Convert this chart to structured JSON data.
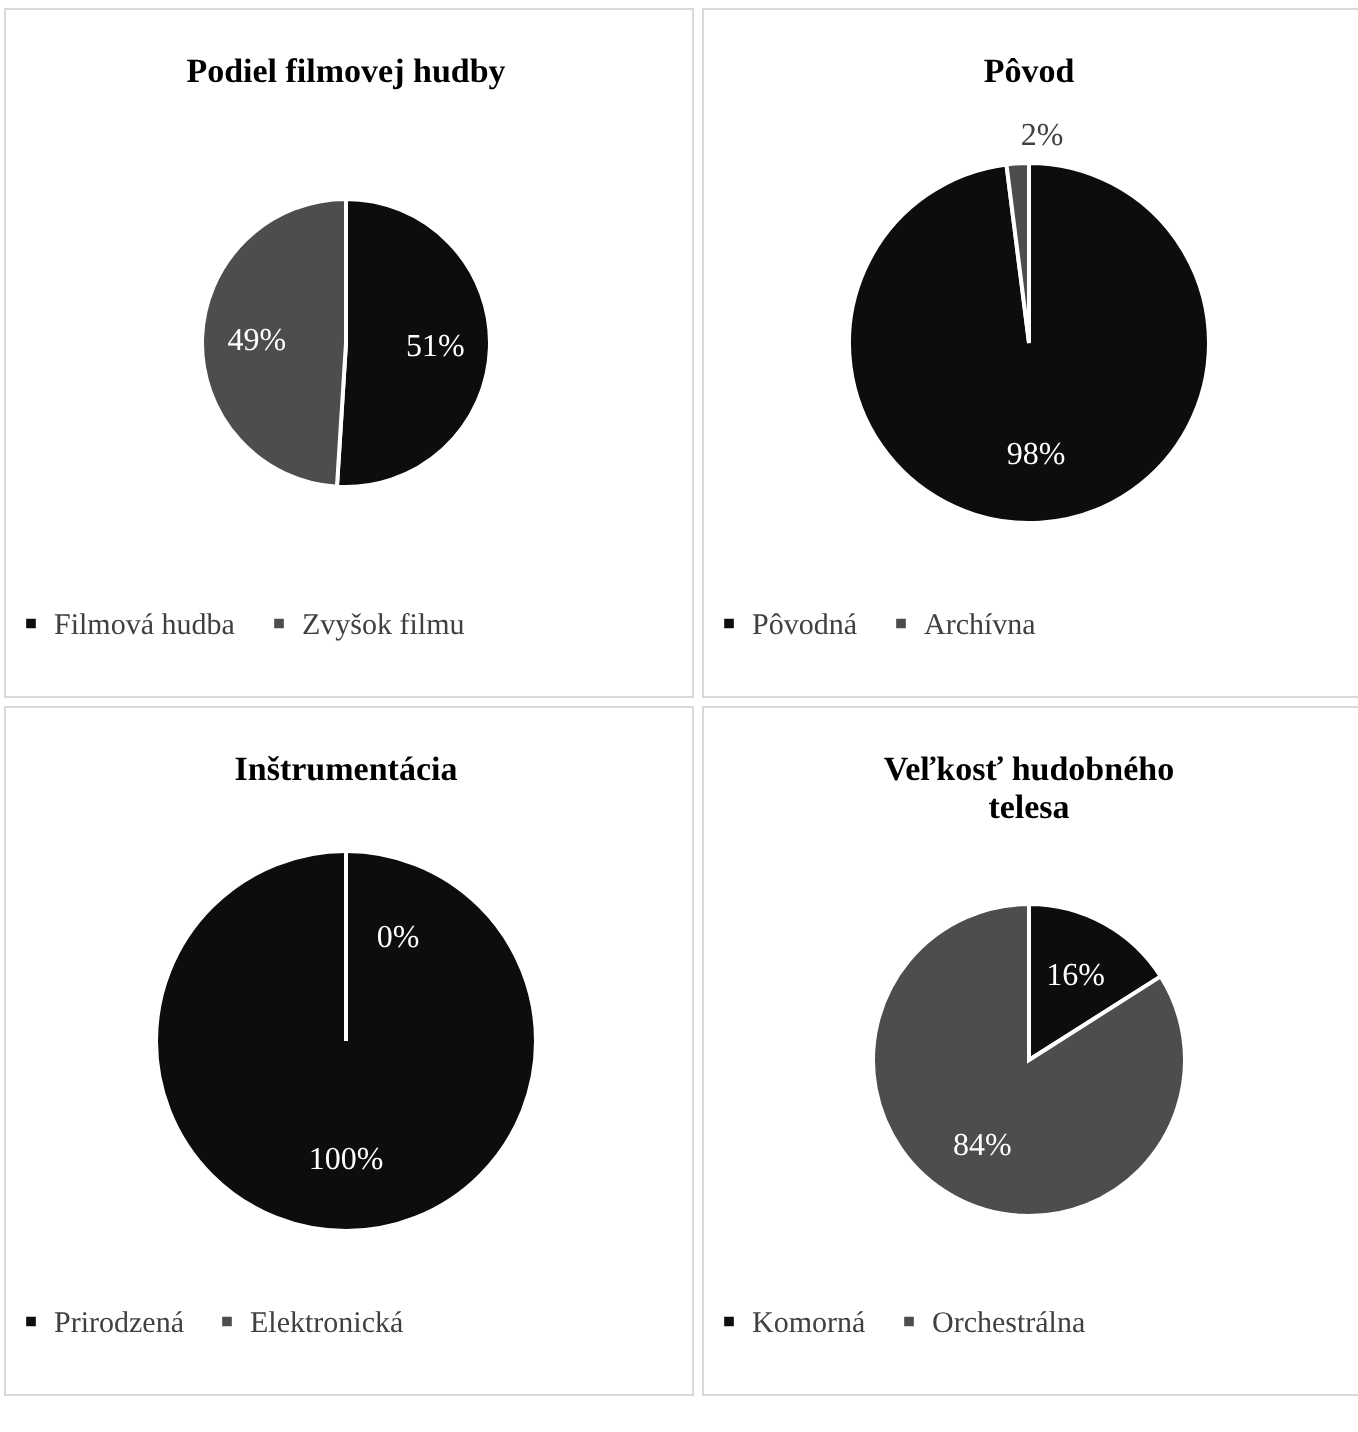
{
  "chart_data": [
    {
      "type": "pie",
      "title": "Podiel filmovej hudby",
      "categories": [
        "Filmová hudba",
        "Zvyšok filmu"
      ],
      "values": [
        51,
        49
      ],
      "colors": [
        "#0d0d0d",
        "#4d4d4d"
      ],
      "value_labels": [
        "51%",
        "49%"
      ],
      "legend": "bottom"
    },
    {
      "type": "pie",
      "title": "Pôvod",
      "categories": [
        "Pôvodná",
        "Archívna"
      ],
      "values": [
        98,
        2
      ],
      "colors": [
        "#0d0d0d",
        "#4d4d4d"
      ],
      "value_labels": [
        "98%",
        "2%"
      ],
      "legend": "bottom"
    },
    {
      "type": "pie",
      "title": "Inštrumentácia",
      "categories": [
        "Prirodzená",
        "Elektronická"
      ],
      "values": [
        100,
        0
      ],
      "colors": [
        "#0d0d0d",
        "#4d4d4d"
      ],
      "value_labels": [
        "100%",
        "0%"
      ],
      "legend": "bottom"
    },
    {
      "type": "pie",
      "title": "Veľkosť hudobného telesa",
      "categories": [
        "Komorná",
        "Orchestrálna"
      ],
      "values": [
        16,
        84
      ],
      "colors": [
        "#0d0d0d",
        "#4d4d4d"
      ],
      "value_labels": [
        "16%",
        "84%"
      ],
      "legend": "bottom"
    }
  ]
}
